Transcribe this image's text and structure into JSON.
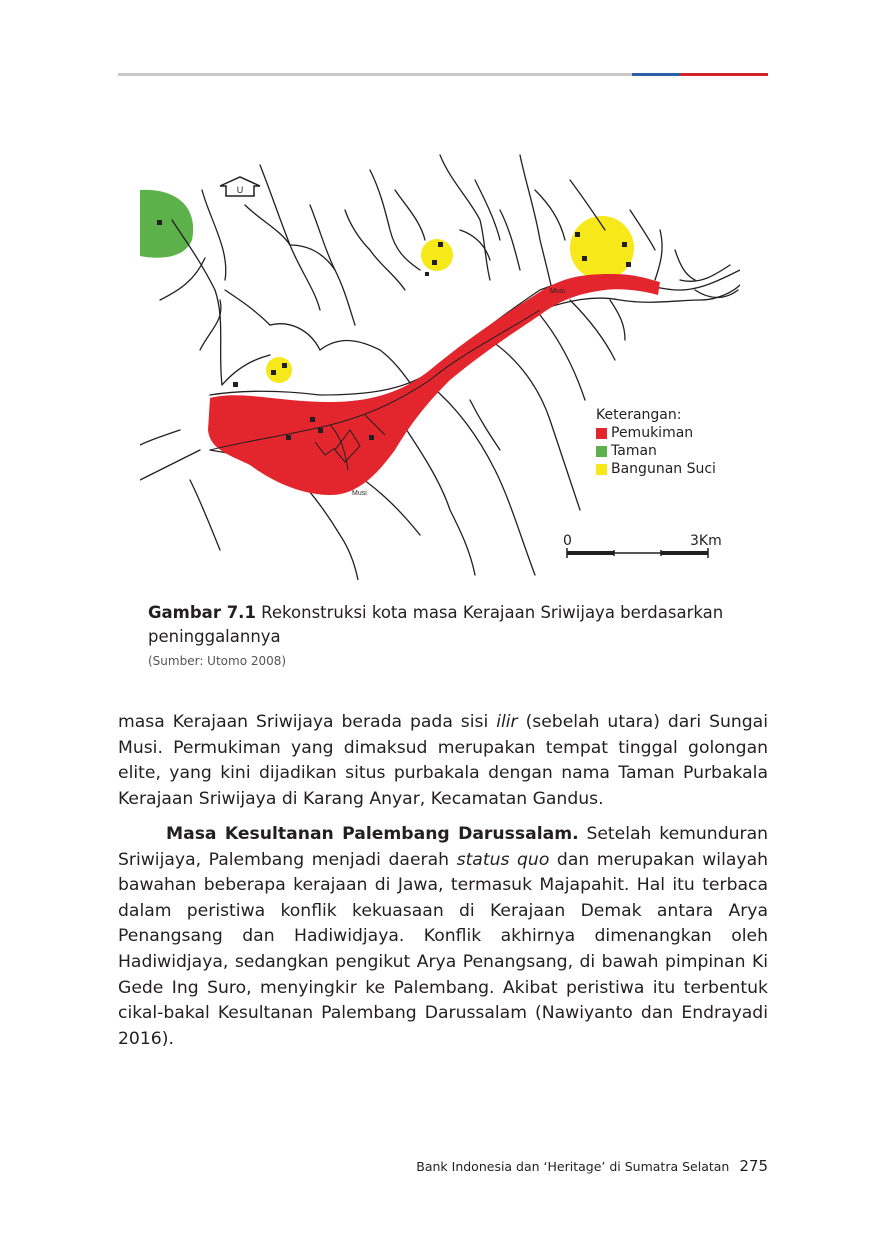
{
  "map": {
    "north_label": "U",
    "river_label_1": "Musi",
    "river_label_2": "Musi",
    "legend": {
      "title": "Keterangan:",
      "items": [
        {
          "label": "Pemukiman",
          "color": "#e3262d"
        },
        {
          "label": "Taman",
          "color": "#5db14a"
        },
        {
          "label": "Bangunan Suci",
          "color": "#f7e81a"
        }
      ]
    },
    "scale": {
      "start": "0",
      "end": "3Km"
    }
  },
  "caption": {
    "label": "Gambar 7.1",
    "text": " Rekonstruksi kota masa Kerajaan Sriwijaya berdasarkan peninggalannya",
    "source": "(Sumber: Utomo 2008)"
  },
  "para1": {
    "t1": "masa Kerajaan Sriwijaya berada pada sisi ",
    "i1": "ilir",
    "t2": " (sebelah utara) dari Sungai Musi. Permukiman yang dimaksud merupakan tempat tinggal golongan elite, yang kini dijadikan situs purbakala dengan nama Taman Purbakala Kerajaan Sriwijaya di Karang Anyar, Kecamatan Gandus."
  },
  "para2": {
    "heading": "Masa Kesultanan Palembang Darussalam.",
    "t1": " Setelah kemunduran Sriwijaya, Palembang menjadi daerah ",
    "i1": "status quo",
    "t2": " dan merupakan wilayah bawahan beberapa kerajaan di Jawa, termasuk Majapahit. Hal itu terbaca dalam peristiwa konflik kekuasaan di Kerajaan Demak antara Arya Penangsang dan Hadiwidjaya. Konflik akhirnya dimenangkan oleh Hadiwidjaya, sedangkan pengikut Arya Penangsang, di bawah pimpinan Ki Gede Ing Suro, menyingkir ke Palembang. Akibat peristiwa itu terbentuk cikal-bakal Kesultanan Palembang Darussalam (Nawiyanto dan Endrayadi 2016)."
  },
  "footer": {
    "running_title": "Bank Indonesia dan ‘Heritage’ di Sumatra Selatan",
    "page_number": "275"
  }
}
